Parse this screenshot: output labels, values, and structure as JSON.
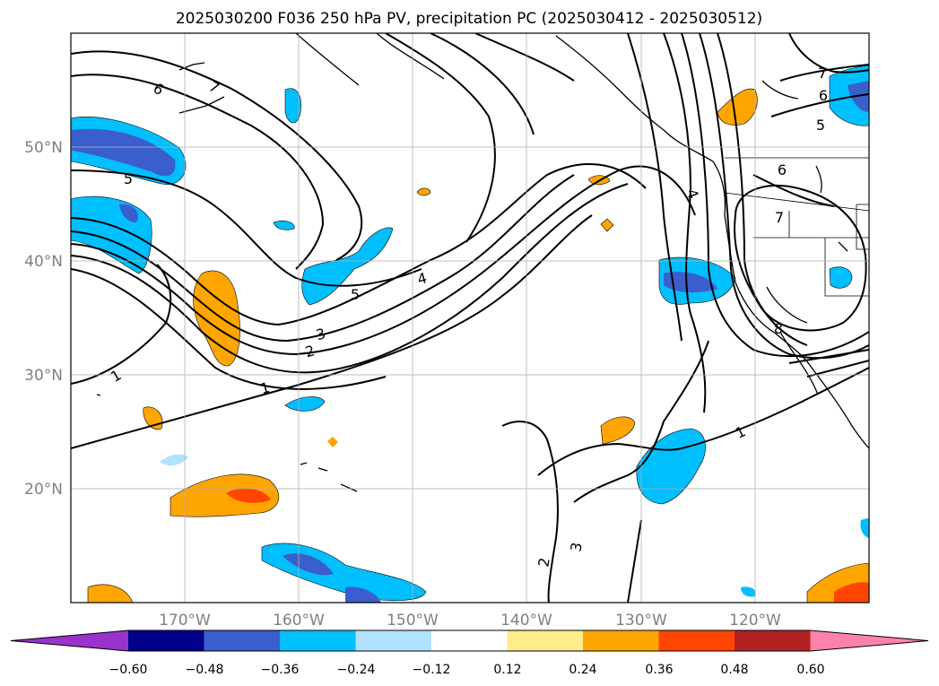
{
  "title": "2025030200 F036 250 hPa PV, precipitation PC (2025030412 - 2025030512)",
  "map": {
    "lon_range": [
      -180,
      -110
    ],
    "lat_range": [
      10,
      60
    ],
    "lon_ticks": [
      {
        "lon": -170,
        "label": "170°W"
      },
      {
        "lon": -160,
        "label": "160°W"
      },
      {
        "lon": -150,
        "label": "150°W"
      },
      {
        "lon": -140,
        "label": "140°W"
      },
      {
        "lon": -130,
        "label": "130°W"
      },
      {
        "lon": -120,
        "label": "120°W"
      }
    ],
    "lat_ticks": [
      {
        "lat": 50,
        "label": "50°N"
      },
      {
        "lat": 40,
        "label": "40°N"
      },
      {
        "lat": 30,
        "label": "30°N"
      },
      {
        "lat": 20,
        "label": "20°N"
      }
    ],
    "grid": true
  },
  "contour_labels": [
    "6",
    "7",
    "5",
    "4",
    "3",
    "2",
    "1",
    "7",
    "6",
    "5",
    "6",
    "7",
    "4",
    "8",
    "5",
    "1",
    "2",
    "3",
    "1"
  ],
  "colorbar": {
    "colors": [
      "#9933cc",
      "#00008b",
      "#3a5fcd",
      "#00bfff",
      "#b0e2ff",
      "#ffffff",
      "#ffec8b",
      "#ffa500",
      "#ff4500",
      "#b22222",
      "#ff82ab"
    ],
    "labels": [
      "−0.60",
      "−0.48",
      "−0.36",
      "−0.24",
      "−0.12",
      "0.12",
      "0.24",
      "0.36",
      "0.48",
      "0.60"
    ]
  }
}
